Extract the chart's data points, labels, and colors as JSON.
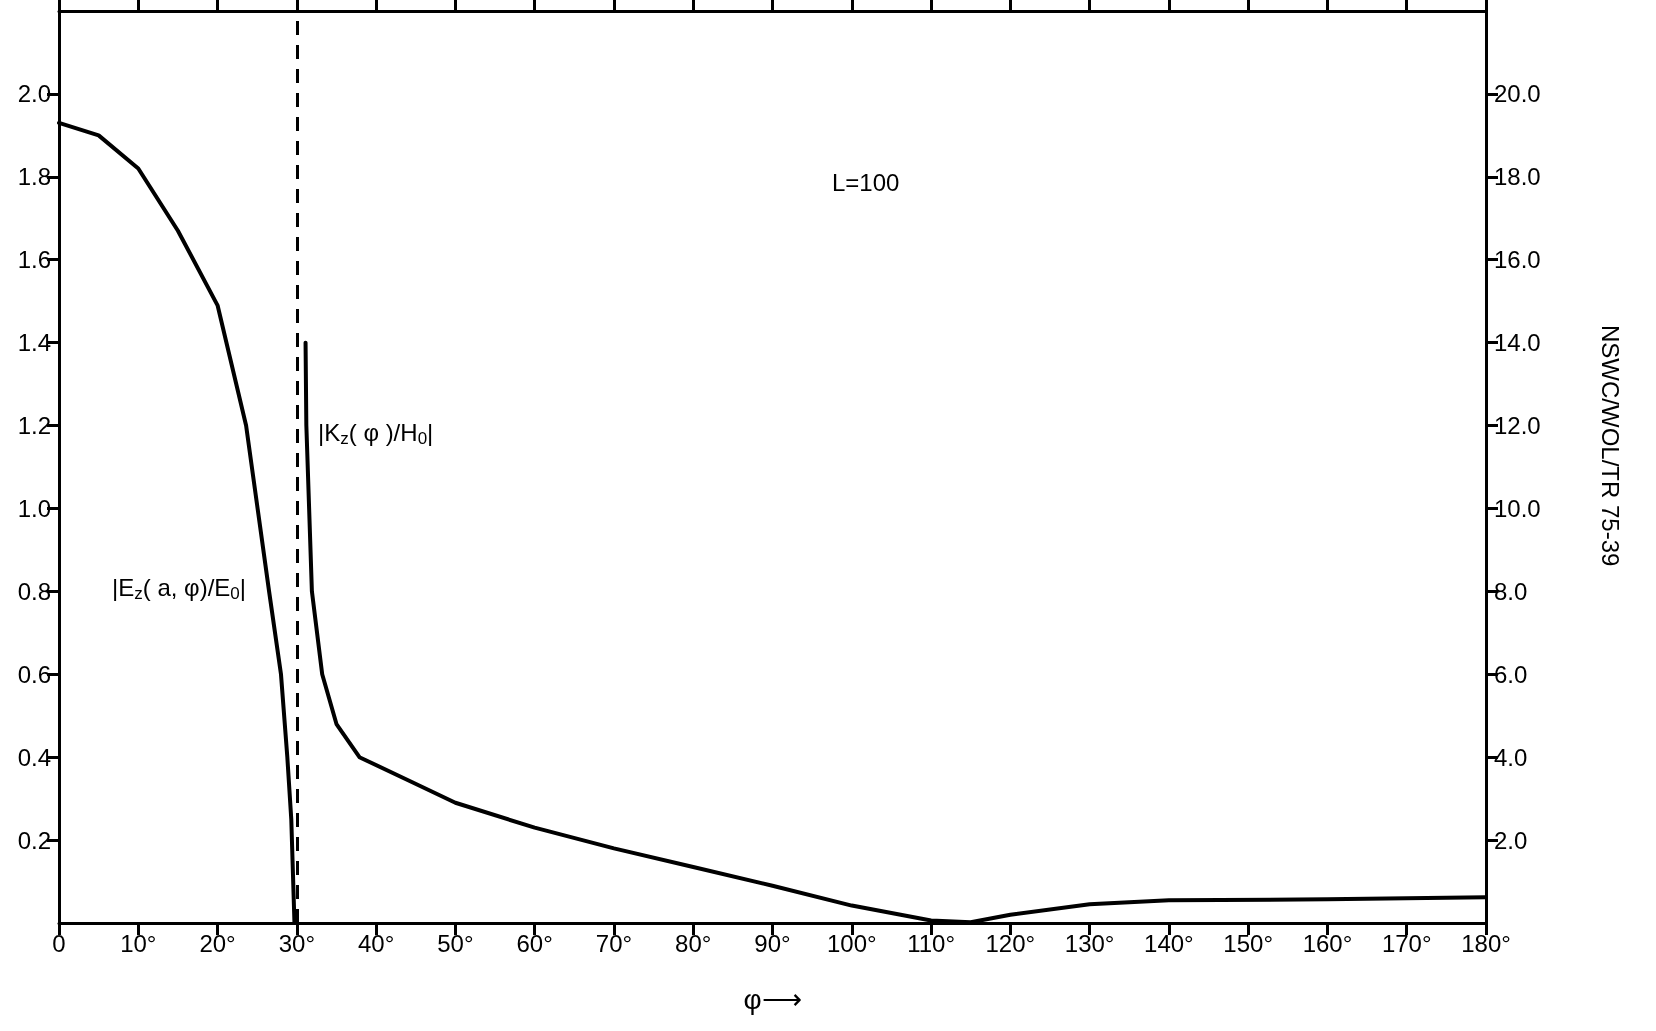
{
  "chart_data": {
    "type": "line",
    "xlabel": "φ⟶",
    "xlim": [
      0,
      180
    ],
    "xticks": [
      0,
      {
        "value": 10,
        "label": "10°"
      },
      {
        "value": 20,
        "label": "20°"
      },
      {
        "value": 30,
        "label": "30°"
      },
      {
        "value": 40,
        "label": "40°"
      },
      {
        "value": 50,
        "label": "50°"
      },
      {
        "value": 60,
        "label": "60°"
      },
      {
        "value": 70,
        "label": "70°"
      },
      {
        "value": 80,
        "label": "80°"
      },
      {
        "value": 90,
        "label": "90°"
      },
      {
        "value": 100,
        "label": "100°"
      },
      {
        "value": 110,
        "label": "110°"
      },
      {
        "value": 120,
        "label": "120°"
      },
      {
        "value": 130,
        "label": "130°"
      },
      {
        "value": 140,
        "label": "140°"
      },
      {
        "value": 150,
        "label": "150°"
      },
      {
        "value": 160,
        "label": "160°"
      },
      {
        "value": 170,
        "label": "170°"
      },
      {
        "value": 180,
        "label": "180°"
      }
    ],
    "ylim": [
      0,
      2.2
    ],
    "yticks": [
      0.2,
      0.4,
      0.6,
      0.8,
      {
        "value": 1,
        "label": "1.0"
      },
      1.2,
      1.4,
      1.6,
      1.8,
      {
        "value": 2,
        "label": "2.0"
      }
    ],
    "y2lim": [
      0,
      22
    ],
    "y2ticks": [
      {
        "value": 2,
        "label": "2.0"
      },
      {
        "value": 4,
        "label": "4.0"
      },
      {
        "value": 6,
        "label": "6.0"
      },
      {
        "value": 8,
        "label": "8.0"
      },
      {
        "value": 10,
        "label": "10.0"
      },
      {
        "value": 12,
        "label": "12.0"
      },
      {
        "value": 14,
        "label": "14.0"
      },
      {
        "value": 16,
        "label": "16.0"
      },
      {
        "value": 18,
        "label": "18.0"
      },
      {
        "value": 20,
        "label": "20.0"
      }
    ],
    "grid": false,
    "legend": false,
    "marker": "none",
    "line_style": "solid",
    "series": [
      {
        "name": "|E$_{z}$( a, φ)/E$_{0}$|",
        "color": "#000000",
        "x": [
          0,
          5,
          10,
          15,
          20,
          23.6,
          26.5,
          28,
          28.8,
          29.3,
          29.7
        ],
        "values": [
          1.93,
          1.9,
          1.82,
          1.67,
          1.49,
          1.2,
          0.8,
          0.6,
          0.4,
          0.25,
          0
        ]
      },
      {
        "name": "|K$_{z}$( φ )/H$_{0}$|",
        "color": "#000000",
        "axis": "y2",
        "x": [
          31.1,
          31.2,
          31.9,
          33.2,
          35,
          37.9,
          44.5,
          50,
          60,
          70,
          80,
          90,
          100,
          110,
          115,
          120,
          130,
          140,
          160,
          180
        ],
        "values": [
          14,
          12,
          8,
          6,
          4.8,
          4,
          3.4,
          2.9,
          2.3,
          1.8,
          1.35,
          0.9,
          0.42,
          0.06,
          0.02,
          0.2,
          0.45,
          0.55,
          0.57,
          0.62
        ]
      }
    ],
    "ref_lines": [
      {
        "axis": "x",
        "value": 30,
        "color": "#000000",
        "line_style": "dashed"
      }
    ],
    "annotations": [
      "L=100",
      "NSWC/WOL/TR 75-39"
    ]
  }
}
